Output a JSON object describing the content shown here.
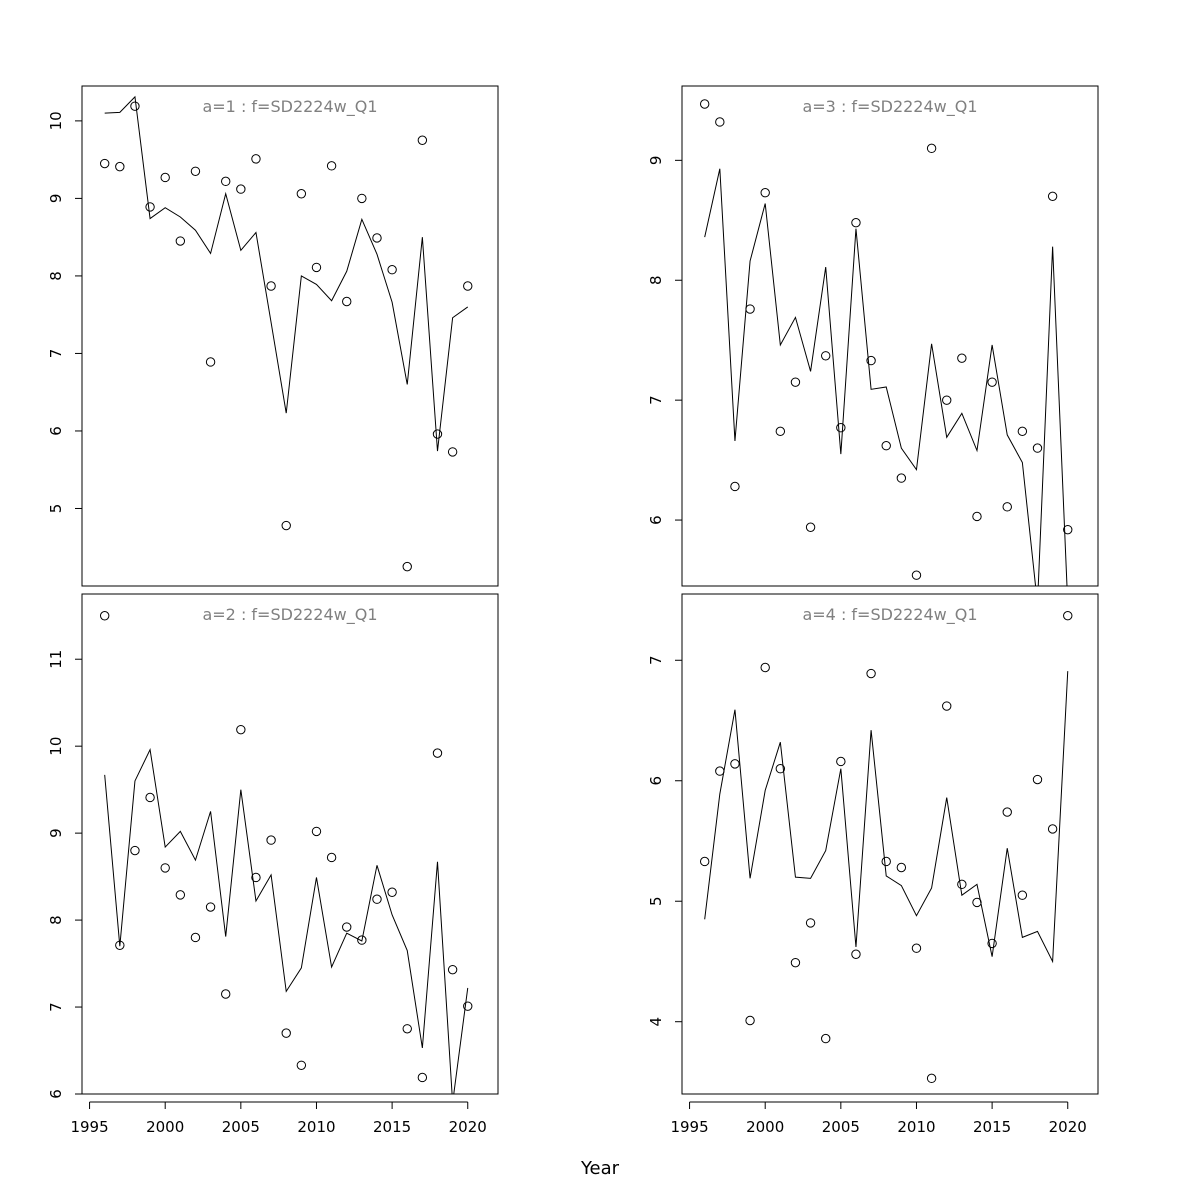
{
  "figure": {
    "xlabel": "Year"
  },
  "chart_data": [
    {
      "type": "scatter",
      "title": "a=1  :  f=SD2224w_Q1",
      "xlim": [
        1994.5,
        2022
      ],
      "ylim": [
        4.0,
        10.45
      ],
      "xticks": [
        1995,
        2000,
        2005,
        2010,
        2015,
        2020
      ],
      "yticks": [
        5,
        6,
        7,
        8,
        9,
        10
      ],
      "show_xticks": false,
      "x": [
        1996,
        1997,
        1998,
        1999,
        2000,
        2001,
        2002,
        2003,
        2004,
        2005,
        2006,
        2007,
        2008,
        2009,
        2010,
        2011,
        2012,
        2013,
        2014,
        2015,
        2016,
        2017,
        2018,
        2019,
        2020
      ],
      "series": [
        {
          "kind": "points",
          "values": [
            9.45,
            9.41,
            10.19,
            8.89,
            9.27,
            8.45,
            9.35,
            6.89,
            9.22,
            9.12,
            9.51,
            7.87,
            4.78,
            9.06,
            8.11,
            9.42,
            7.67,
            9.0,
            8.49,
            8.08,
            4.25,
            9.75,
            5.96,
            5.73,
            7.87
          ]
        },
        {
          "kind": "line",
          "values": [
            10.1,
            10.11,
            10.31,
            8.74,
            8.88,
            8.76,
            8.59,
            8.29,
            9.06,
            8.33,
            8.56,
            7.4,
            6.23,
            8.0,
            7.89,
            7.68,
            8.06,
            8.73,
            8.28,
            7.66,
            6.6,
            8.5,
            5.74,
            7.46,
            7.6
          ]
        }
      ]
    },
    {
      "type": "scatter",
      "title": "a=3  :  f=SD2224w_Q1",
      "xlim": [
        1994.5,
        2022
      ],
      "ylim": [
        5.45,
        9.62
      ],
      "xticks": [
        1995,
        2000,
        2005,
        2010,
        2015,
        2020
      ],
      "yticks": [
        6,
        7,
        8,
        9
      ],
      "show_xticks": false,
      "x": [
        1996,
        1997,
        1998,
        1999,
        2000,
        2001,
        2002,
        2003,
        2004,
        2005,
        2006,
        2007,
        2008,
        2009,
        2010,
        2011,
        2012,
        2013,
        2014,
        2015,
        2016,
        2017,
        2018,
        2019,
        2020
      ],
      "series": [
        {
          "kind": "points",
          "values": [
            9.47,
            9.32,
            6.28,
            7.76,
            8.73,
            6.74,
            7.15,
            5.94,
            7.37,
            6.77,
            8.48,
            7.33,
            6.62,
            6.35,
            5.54,
            9.1,
            7.0,
            7.35,
            6.03,
            7.15,
            6.11,
            6.74,
            6.6,
            8.7,
            5.92
          ]
        },
        {
          "kind": "line",
          "values": [
            8.36,
            8.93,
            6.66,
            8.16,
            8.64,
            7.46,
            7.69,
            7.24,
            8.11,
            6.55,
            8.43,
            7.09,
            7.11,
            6.6,
            6.42,
            7.47,
            6.69,
            6.89,
            6.58,
            7.46,
            6.71,
            6.48,
            5.3,
            8.28,
            5.3
          ]
        }
      ]
    },
    {
      "type": "scatter",
      "title": "a=2  :  f=SD2224w_Q1",
      "xlim": [
        1994.5,
        2022
      ],
      "ylim": [
        6.0,
        11.75
      ],
      "xticks": [
        1995,
        2000,
        2005,
        2010,
        2015,
        2020
      ],
      "yticks": [
        6,
        7,
        8,
        9,
        10,
        11
      ],
      "show_xticks": true,
      "x": [
        1996,
        1997,
        1998,
        1999,
        2000,
        2001,
        2002,
        2003,
        2004,
        2005,
        2006,
        2007,
        2008,
        2009,
        2010,
        2011,
        2012,
        2013,
        2014,
        2015,
        2016,
        2017,
        2018,
        2019,
        2020
      ],
      "series": [
        {
          "kind": "points",
          "values": [
            11.5,
            7.71,
            8.8,
            9.41,
            8.6,
            8.29,
            7.8,
            8.15,
            7.15,
            10.19,
            8.49,
            8.92,
            6.7,
            6.33,
            9.02,
            8.72,
            7.92,
            7.77,
            8.24,
            8.32,
            6.75,
            6.19,
            9.92,
            7.43,
            7.01
          ]
        },
        {
          "kind": "line",
          "values": [
            9.67,
            7.7,
            9.6,
            9.96,
            8.84,
            9.02,
            8.69,
            9.25,
            7.81,
            9.5,
            8.22,
            8.52,
            7.18,
            7.45,
            8.49,
            7.46,
            7.85,
            7.76,
            8.63,
            8.06,
            7.65,
            6.53,
            8.67,
            5.9,
            7.22
          ]
        }
      ]
    },
    {
      "type": "scatter",
      "title": "a=4  :  f=SD2224w_Q1",
      "xlim": [
        1994.5,
        2022
      ],
      "ylim": [
        3.4,
        7.55
      ],
      "xticks": [
        1995,
        2000,
        2005,
        2010,
        2015,
        2020
      ],
      "yticks": [
        4,
        5,
        6,
        7
      ],
      "show_xticks": true,
      "x": [
        1996,
        1997,
        1998,
        1999,
        2000,
        2001,
        2002,
        2003,
        2004,
        2005,
        2006,
        2007,
        2008,
        2009,
        2010,
        2011,
        2012,
        2013,
        2014,
        2015,
        2016,
        2017,
        2018,
        2019,
        2020
      ],
      "series": [
        {
          "kind": "points",
          "values": [
            5.33,
            6.08,
            6.14,
            4.01,
            6.94,
            6.1,
            4.49,
            4.82,
            3.86,
            6.16,
            4.56,
            6.89,
            5.33,
            5.28,
            4.61,
            3.53,
            6.62,
            5.14,
            4.99,
            4.65,
            5.74,
            5.05,
            6.01,
            5.6,
            7.37
          ]
        },
        {
          "kind": "line",
          "values": [
            4.85,
            5.89,
            6.59,
            5.19,
            5.92,
            6.32,
            5.2,
            5.19,
            5.42,
            6.1,
            4.62,
            6.42,
            5.21,
            5.13,
            4.88,
            5.11,
            5.86,
            5.05,
            5.14,
            4.54,
            5.44,
            4.7,
            4.75,
            4.5,
            6.91
          ]
        }
      ]
    }
  ]
}
